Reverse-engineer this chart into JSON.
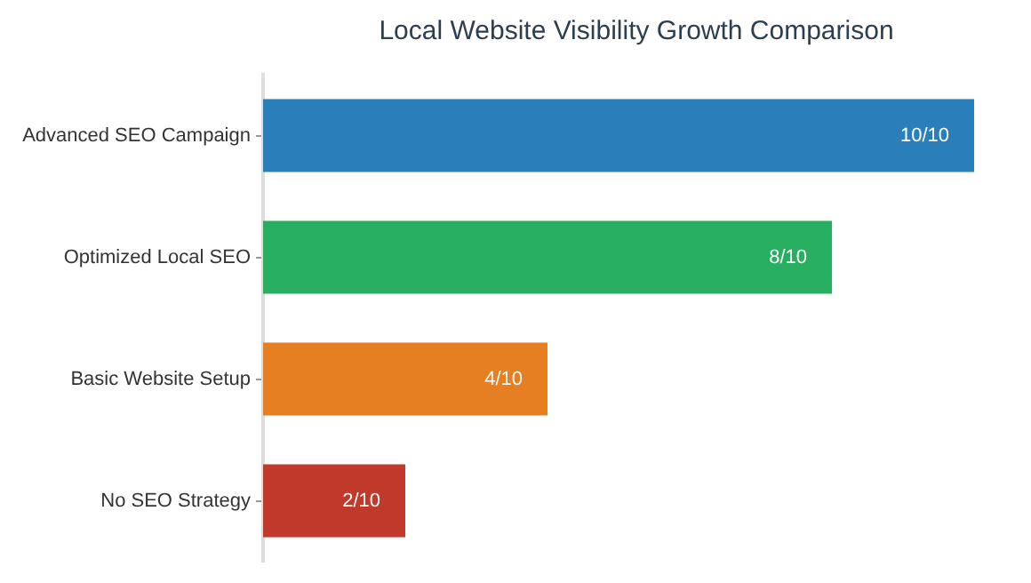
{
  "chart_data": {
    "type": "bar",
    "orientation": "horizontal",
    "title": "Local Website Visibility Growth Comparison",
    "categories": [
      "Advanced SEO Campaign",
      "Optimized Local SEO",
      "Basic Website Setup",
      "No SEO Strategy"
    ],
    "values": [
      1,
      0.8,
      0.4,
      0.2
    ],
    "colors": [
      "#2a7fba",
      "#27ae60",
      "#e67e22",
      "#c0392b"
    ],
    "value_labels": [
      "10/10",
      "8/10",
      "4/10",
      "2/10"
    ],
    "xlim": [
      0,
      1
    ],
    "tick_labels": "y",
    "grid": false,
    "legend": false
  }
}
